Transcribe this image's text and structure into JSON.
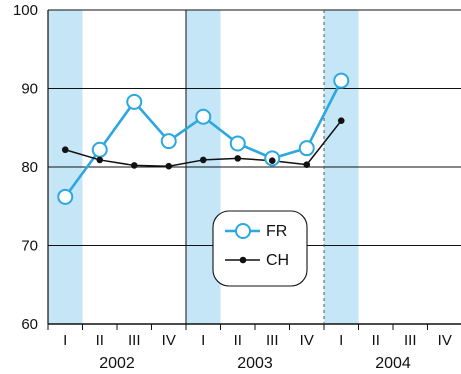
{
  "chart_data": {
    "type": "line",
    "title": "",
    "xlabel": "",
    "ylabel": "",
    "ylim": [
      60,
      100
    ],
    "yticks": [
      60,
      70,
      80,
      90,
      100
    ],
    "grid": "horizontal",
    "legend_position": "center",
    "years": [
      "2002",
      "2003",
      "2004"
    ],
    "quarter_labels": [
      "I",
      "II",
      "III",
      "IV",
      "I",
      "II",
      "III",
      "IV",
      "I",
      "II",
      "III",
      "IV"
    ],
    "shaded_quarters": [
      "I",
      "I",
      "I"
    ],
    "series": [
      {
        "name": "FR",
        "color": "#2aa8df",
        "marker": "open-circle",
        "values": [
          76.2,
          82.2,
          88.3,
          83.3,
          86.4,
          83.0,
          81.1,
          82.4,
          91.0,
          null,
          null,
          null
        ]
      },
      {
        "name": "CH",
        "color": "#111111",
        "marker": "filled-dot",
        "values": [
          82.2,
          80.9,
          80.2,
          80.1,
          80.9,
          81.1,
          80.8,
          80.3,
          85.9,
          null,
          null,
          null
        ]
      }
    ],
    "shade_color": "#c5e6f7"
  }
}
